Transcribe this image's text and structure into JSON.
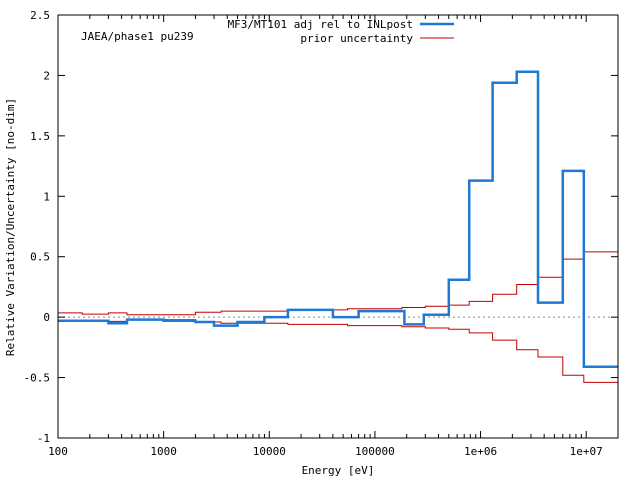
{
  "chart_data": {
    "type": "line",
    "title": "",
    "annotation": "JAEA/phase1 pu239",
    "xlabel": "Energy [eV]",
    "ylabel": "Relative Variation/Uncertainty [no-dim]",
    "x_scale": "log",
    "xlim": [
      100,
      20000000
    ],
    "ylim": [
      -1,
      2.5
    ],
    "x_ticks": [
      {
        "value": 100,
        "label": "100"
      },
      {
        "value": 1000,
        "label": "1000"
      },
      {
        "value": 10000,
        "label": "10000"
      },
      {
        "value": 100000,
        "label": "100000"
      },
      {
        "value": 1000000,
        "label": "1e+06"
      },
      {
        "value": 10000000,
        "label": "1e+07"
      }
    ],
    "y_ticks": [
      {
        "value": -1,
        "label": "-1"
      },
      {
        "value": -0.5,
        "label": "-0.5"
      },
      {
        "value": 0,
        "label": "0"
      },
      {
        "value": 0.5,
        "label": "0.5"
      },
      {
        "value": 1,
        "label": "1"
      },
      {
        "value": 1.5,
        "label": "1.5"
      },
      {
        "value": 2,
        "label": "2"
      },
      {
        "value": 2.5,
        "label": "2.5"
      }
    ],
    "legend_position": "top-right",
    "grid": false,
    "zero_line": true,
    "series": [
      {
        "name": "MF3/MT101 adj rel to INLpost",
        "color": "#1f78d4",
        "style": "step",
        "bins": [
          {
            "x0": 100,
            "x1": 300,
            "y": -0.03
          },
          {
            "x0": 300,
            "x1": 450,
            "y": -0.05
          },
          {
            "x0": 450,
            "x1": 1000,
            "y": -0.02
          },
          {
            "x0": 1000,
            "x1": 2000,
            "y": -0.03
          },
          {
            "x0": 2000,
            "x1": 3000,
            "y": -0.04
          },
          {
            "x0": 3000,
            "x1": 5000,
            "y": -0.07
          },
          {
            "x0": 5000,
            "x1": 9000,
            "y": -0.04
          },
          {
            "x0": 9000,
            "x1": 15000,
            "y": 0.0
          },
          {
            "x0": 15000,
            "x1": 40000,
            "y": 0.06
          },
          {
            "x0": 40000,
            "x1": 70000,
            "y": 0.0
          },
          {
            "x0": 70000,
            "x1": 190000,
            "y": 0.05
          },
          {
            "x0": 190000,
            "x1": 290000,
            "y": -0.06
          },
          {
            "x0": 290000,
            "x1": 500000,
            "y": 0.02
          },
          {
            "x0": 500000,
            "x1": 780000,
            "y": 0.31
          },
          {
            "x0": 780000,
            "x1": 1300000,
            "y": 1.13
          },
          {
            "x0": 1300000,
            "x1": 2200000,
            "y": 1.94
          },
          {
            "x0": 2200000,
            "x1": 3500000,
            "y": 2.03
          },
          {
            "x0": 3500000,
            "x1": 6000000,
            "y": 0.12
          },
          {
            "x0": 6000000,
            "x1": 9500000,
            "y": 1.21
          },
          {
            "x0": 9500000,
            "x1": 20000000,
            "y": -0.41
          }
        ]
      },
      {
        "name": "prior uncertainty",
        "color": "#c00000",
        "style": "step-symmetric",
        "bins": [
          {
            "x0": 100,
            "x1": 170,
            "y": 0.035
          },
          {
            "x0": 170,
            "x1": 300,
            "y": 0.025
          },
          {
            "x0": 300,
            "x1": 450,
            "y": 0.035
          },
          {
            "x0": 450,
            "x1": 2000,
            "y": 0.02
          },
          {
            "x0": 2000,
            "x1": 3500,
            "y": 0.04
          },
          {
            "x0": 3500,
            "x1": 15000,
            "y": 0.05
          },
          {
            "x0": 15000,
            "x1": 55000,
            "y": 0.06
          },
          {
            "x0": 55000,
            "x1": 180000,
            "y": 0.07
          },
          {
            "x0": 180000,
            "x1": 300000,
            "y": 0.08
          },
          {
            "x0": 300000,
            "x1": 500000,
            "y": 0.09
          },
          {
            "x0": 500000,
            "x1": 780000,
            "y": 0.1
          },
          {
            "x0": 780000,
            "x1": 1300000,
            "y": 0.13
          },
          {
            "x0": 1300000,
            "x1": 2200000,
            "y": 0.19
          },
          {
            "x0": 2200000,
            "x1": 3500000,
            "y": 0.27
          },
          {
            "x0": 3500000,
            "x1": 6000000,
            "y": 0.33
          },
          {
            "x0": 6000000,
            "x1": 9500000,
            "y": 0.48
          },
          {
            "x0": 9500000,
            "x1": 20000000,
            "y": 0.54
          }
        ]
      }
    ]
  }
}
